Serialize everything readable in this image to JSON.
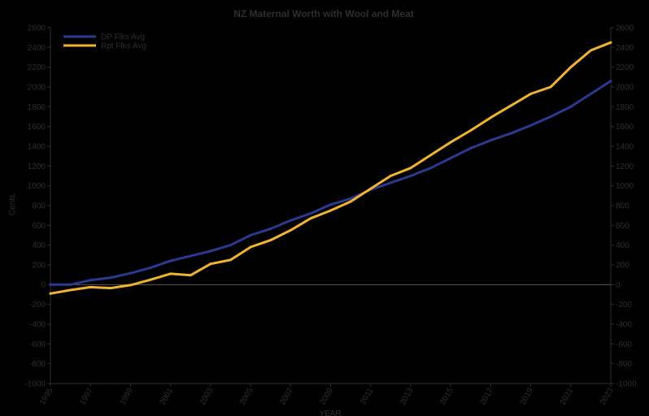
{
  "chart_data": {
    "type": "line",
    "title": "NZ Maternal Worth with Wool and Meat",
    "xlabel": "YEAR",
    "ylabel": "Cents",
    "ylim": [
      -1000,
      2600
    ],
    "ytick_step": 200,
    "yticks": [
      "-1000",
      "-800",
      "-600",
      "-400",
      "-200",
      "0",
      "200",
      "400",
      "600",
      "800",
      "1000",
      "1200",
      "1400",
      "1600",
      "1800",
      "2000",
      "2200",
      "2400",
      "2600"
    ],
    "x_ticks": [
      "1995",
      "1997",
      "1999",
      "2001",
      "2003",
      "2005",
      "2007",
      "2009",
      "2011",
      "2013",
      "2015",
      "2017",
      "2019",
      "2021",
      "2023"
    ],
    "x": [
      1995,
      1996,
      1997,
      1998,
      1999,
      2000,
      2001,
      2002,
      2003,
      2004,
      2005,
      2006,
      2007,
      2008,
      2009,
      2010,
      2011,
      2012,
      2013,
      2014,
      2015,
      2016,
      2017,
      2018,
      2019,
      2020,
      2021,
      2022,
      2023
    ],
    "series": [
      {
        "name": "DP Flks Avg",
        "color": "#2b3a8f",
        "values": [
          0,
          0,
          45,
          70,
          115,
          170,
          240,
          290,
          340,
          400,
          500,
          565,
          650,
          720,
          810,
          870,
          960,
          1030,
          1100,
          1180,
          1280,
          1380,
          1460,
          1530,
          1610,
          1700,
          1800,
          1930,
          2060
        ]
      },
      {
        "name": "Rpt Flks Avg",
        "color": "#f2b234",
        "values": [
          -90,
          -55,
          -25,
          -35,
          -5,
          50,
          110,
          95,
          210,
          250,
          380,
          450,
          550,
          670,
          750,
          840,
          970,
          1100,
          1180,
          1310,
          1440,
          1560,
          1690,
          1810,
          1930,
          2000,
          2200,
          2370,
          2450
        ]
      }
    ],
    "legend_position": "top-left",
    "zero_line": true
  }
}
